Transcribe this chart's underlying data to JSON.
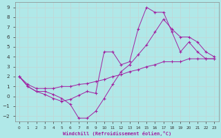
{
  "line1_x": [
    0,
    1,
    2,
    3,
    4,
    5,
    6,
    7,
    8,
    9,
    10,
    11,
    12,
    13,
    14,
    15,
    16,
    17,
    18,
    19,
    20,
    21,
    22,
    23
  ],
  "line1_y": [
    2.0,
    1.0,
    0.5,
    0.2,
    -0.2,
    -0.5,
    -0.3,
    0.1,
    0.5,
    0.3,
    4.5,
    4.5,
    3.2,
    3.5,
    6.8,
    9.0,
    8.5,
    8.5,
    6.5,
    4.5,
    5.5,
    4.5,
    3.8,
    3.8
  ],
  "line2_x": [
    0,
    1,
    2,
    3,
    4,
    5,
    6,
    7,
    8,
    9,
    10,
    11,
    12,
    13,
    14,
    15,
    16,
    17,
    18,
    19,
    20,
    21,
    22,
    23
  ],
  "line2_y": [
    2.0,
    1.0,
    0.5,
    0.5,
    0.2,
    -0.2,
    -0.8,
    -2.2,
    -2.2,
    -1.5,
    -0.2,
    1.2,
    2.5,
    3.2,
    4.2,
    5.2,
    6.5,
    7.8,
    6.8,
    6.0,
    6.0,
    5.5,
    4.5,
    4.0
  ],
  "line3_x": [
    0,
    1,
    2,
    3,
    4,
    5,
    6,
    7,
    8,
    9,
    10,
    11,
    12,
    13,
    14,
    15,
    16,
    17,
    18,
    19,
    20,
    21,
    22,
    23
  ],
  "line3_y": [
    2.0,
    1.2,
    0.8,
    0.8,
    0.8,
    1.0,
    1.0,
    1.2,
    1.3,
    1.5,
    1.7,
    2.0,
    2.2,
    2.5,
    2.7,
    3.0,
    3.2,
    3.5,
    3.5,
    3.5,
    3.8,
    3.8,
    3.8,
    3.8
  ],
  "line_color": "#a020a0",
  "bg_color": "#b0e8e8",
  "grid_color": "#c0d8d8",
  "xlabel": "Windchill (Refroidissement éolien,°C)",
  "xlim": [
    -0.5,
    23.5
  ],
  "ylim": [
    -2.5,
    9.5
  ],
  "yticks": [
    -2,
    -1,
    0,
    1,
    2,
    3,
    4,
    5,
    6,
    7,
    8,
    9
  ],
  "xticks": [
    0,
    1,
    2,
    3,
    4,
    5,
    6,
    7,
    8,
    9,
    10,
    11,
    12,
    13,
    14,
    15,
    16,
    17,
    18,
    19,
    20,
    21,
    22,
    23
  ]
}
